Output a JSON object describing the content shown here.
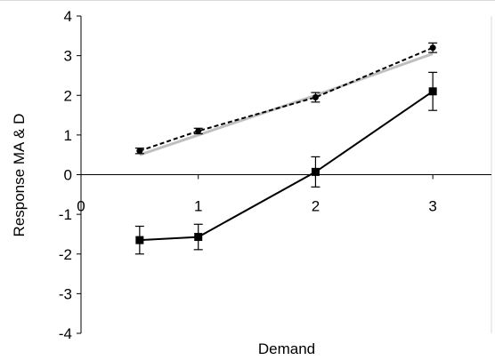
{
  "chart_data": {
    "type": "line",
    "xlabel": "Demand",
    "ylabel": "Response MA & D",
    "xlim": [
      0,
      3.5
    ],
    "ylim": [
      -4,
      4
    ],
    "x_ticks": [
      "0",
      "1",
      "2",
      "3"
    ],
    "y_ticks": [
      "4",
      "3",
      "2",
      "1",
      "0",
      "-1",
      "-2",
      "-3",
      "-4"
    ],
    "grid": false,
    "legend": "none",
    "series": [
      {
        "style": "dashed",
        "color": "#000000",
        "marker": "circle",
        "x": [
          0.5,
          1,
          2,
          3
        ],
        "y": [
          0.6,
          1.1,
          1.95,
          3.2
        ],
        "err": [
          0.07,
          0.07,
          0.12,
          0.12
        ]
      },
      {
        "style": "solid",
        "color": "#bfbfbf",
        "marker": "none",
        "x": [
          0.5,
          1,
          2,
          3
        ],
        "y": [
          0.5,
          1.0,
          2.0,
          3.05
        ],
        "err": []
      },
      {
        "style": "solid",
        "color": "#000000",
        "marker": "square",
        "x": [
          0.5,
          1,
          2,
          3
        ],
        "y": [
          -1.65,
          -1.57,
          0.07,
          2.1
        ],
        "err": [
          0.35,
          0.32,
          0.38,
          0.48
        ]
      }
    ]
  }
}
